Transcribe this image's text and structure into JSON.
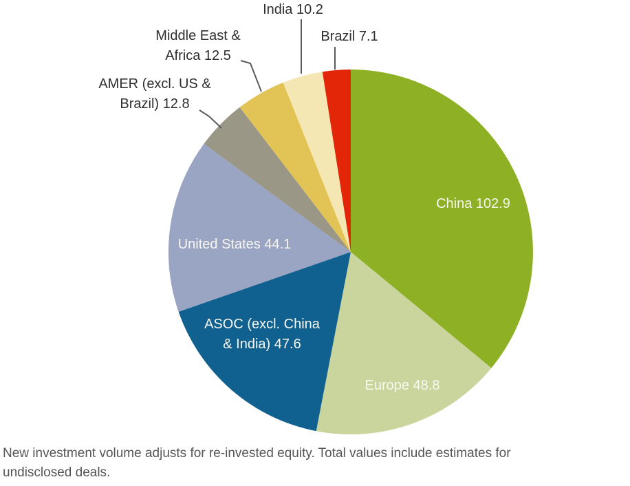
{
  "chart_data": {
    "type": "pie",
    "title": "",
    "total": 286.0,
    "start_angle_deg": 0,
    "direction": "clockwise",
    "legend_position": "none",
    "slices": [
      {
        "id": "china",
        "label": "China",
        "value": 102.9,
        "color": "#8DB024",
        "label_lines": [
          "China 102.9"
        ],
        "label_placement": "inside"
      },
      {
        "id": "europe",
        "label": "Europe",
        "value": 48.8,
        "color": "#C9D59D",
        "label_lines": [
          "Europe 48.8"
        ],
        "label_placement": "inside"
      },
      {
        "id": "asoc",
        "label": "ASOC (excl. China & India)",
        "value": 47.6,
        "color": "#10618F",
        "label_lines": [
          "ASOC (excl. China",
          "& India) 47.6"
        ],
        "label_placement": "inside"
      },
      {
        "id": "us",
        "label": "United States",
        "value": 44.1,
        "color": "#9AA4C3",
        "label_lines": [
          "United States 44.1"
        ],
        "label_placement": "inside"
      },
      {
        "id": "amer",
        "label": "AMER (excl. US & Brazil)",
        "value": 12.8,
        "color": "#9A9787",
        "label_lines": [
          "AMER (excl. US &",
          "Brazil) 12.8"
        ],
        "label_placement": "outside"
      },
      {
        "id": "mea",
        "label": "Middle East & Africa",
        "value": 12.5,
        "color": "#E2C355",
        "label_lines": [
          "Middle East &",
          "Africa 12.5"
        ],
        "label_placement": "outside"
      },
      {
        "id": "india",
        "label": "India",
        "value": 10.2,
        "color": "#F5E7B3",
        "label_lines": [
          "India 10.2"
        ],
        "label_placement": "outside"
      },
      {
        "id": "brazil",
        "label": "Brazil",
        "value": 7.1,
        "color": "#E32508",
        "label_lines": [
          "Brazil 7.1"
        ],
        "label_placement": "outside"
      }
    ],
    "style": {
      "inside_label_color": "#F7F7F0",
      "outside_label_color": "#2E2E2E",
      "leader_line_color": "#5A5A5A",
      "background": "#FFFFFF"
    },
    "caption_lines": [
      "New investment volume adjusts for re-invested equity. Total values include estimates for",
      "undisclosed deals."
    ]
  }
}
